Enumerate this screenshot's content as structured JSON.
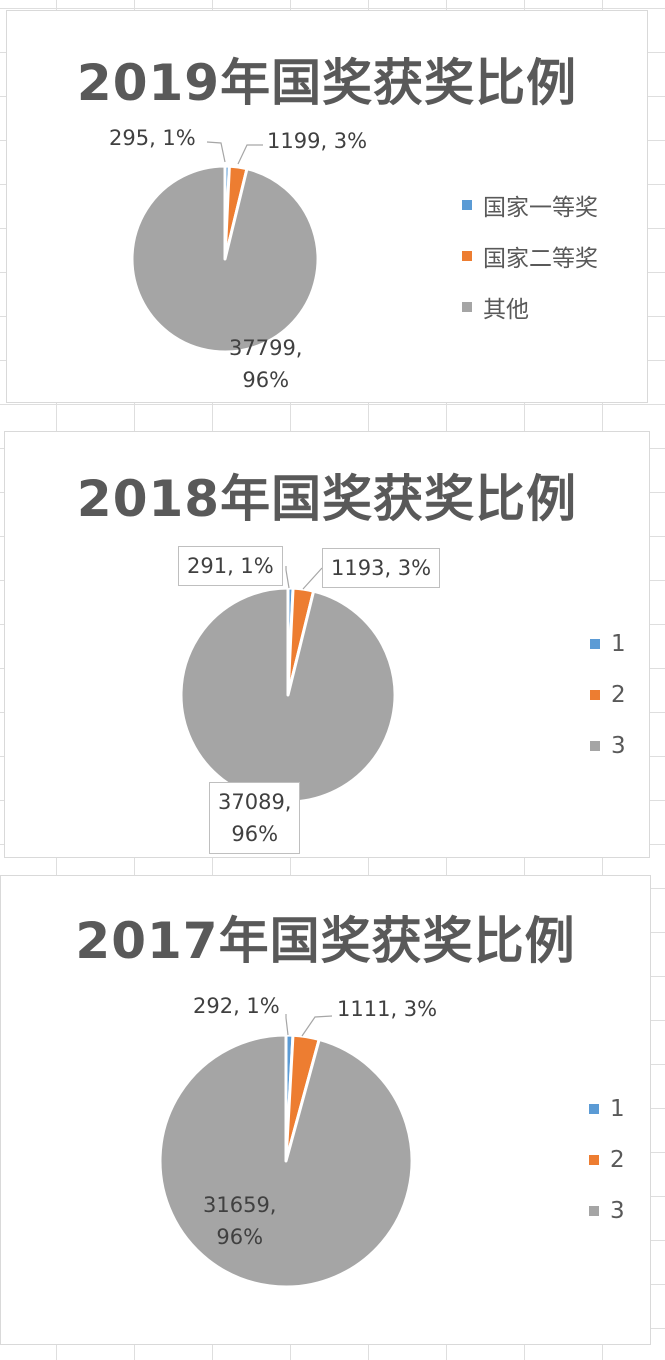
{
  "chart_data": [
    {
      "type": "pie",
      "title": "2019年国奖获奖比例",
      "categories": [
        "国家一等奖",
        "国家二等奖",
        "其他"
      ],
      "values": [
        295,
        1199,
        37799
      ],
      "labels": [
        "295, 1%",
        "1199, 3%",
        "37799,\n96%"
      ],
      "colors": [
        "#5b9bd5",
        "#ed7d31",
        "#a5a5a5"
      ],
      "legend": [
        "国家一等奖",
        "国家二等奖",
        "其他"
      ],
      "legend_position": "right"
    },
    {
      "type": "pie",
      "title": "2018年国奖获奖比例",
      "categories": [
        "1",
        "2",
        "3"
      ],
      "values": [
        291,
        1193,
        37089
      ],
      "labels": [
        "291, 1%",
        "1193, 3%",
        "37089,\n96%"
      ],
      "colors": [
        "#5b9bd5",
        "#ed7d31",
        "#a5a5a5"
      ],
      "legend": [
        "1",
        "2",
        "3"
      ],
      "legend_position": "right"
    },
    {
      "type": "pie",
      "title": "2017年国奖获奖比例",
      "categories": [
        "1",
        "2",
        "3"
      ],
      "values": [
        292,
        1111,
        31659
      ],
      "labels": [
        "292, 1%",
        "1111, 3%",
        "31659,\n96%"
      ],
      "colors": [
        "#5b9bd5",
        "#ed7d31",
        "#a5a5a5"
      ],
      "legend": [
        "1",
        "2",
        "3"
      ],
      "legend_position": "right"
    }
  ]
}
